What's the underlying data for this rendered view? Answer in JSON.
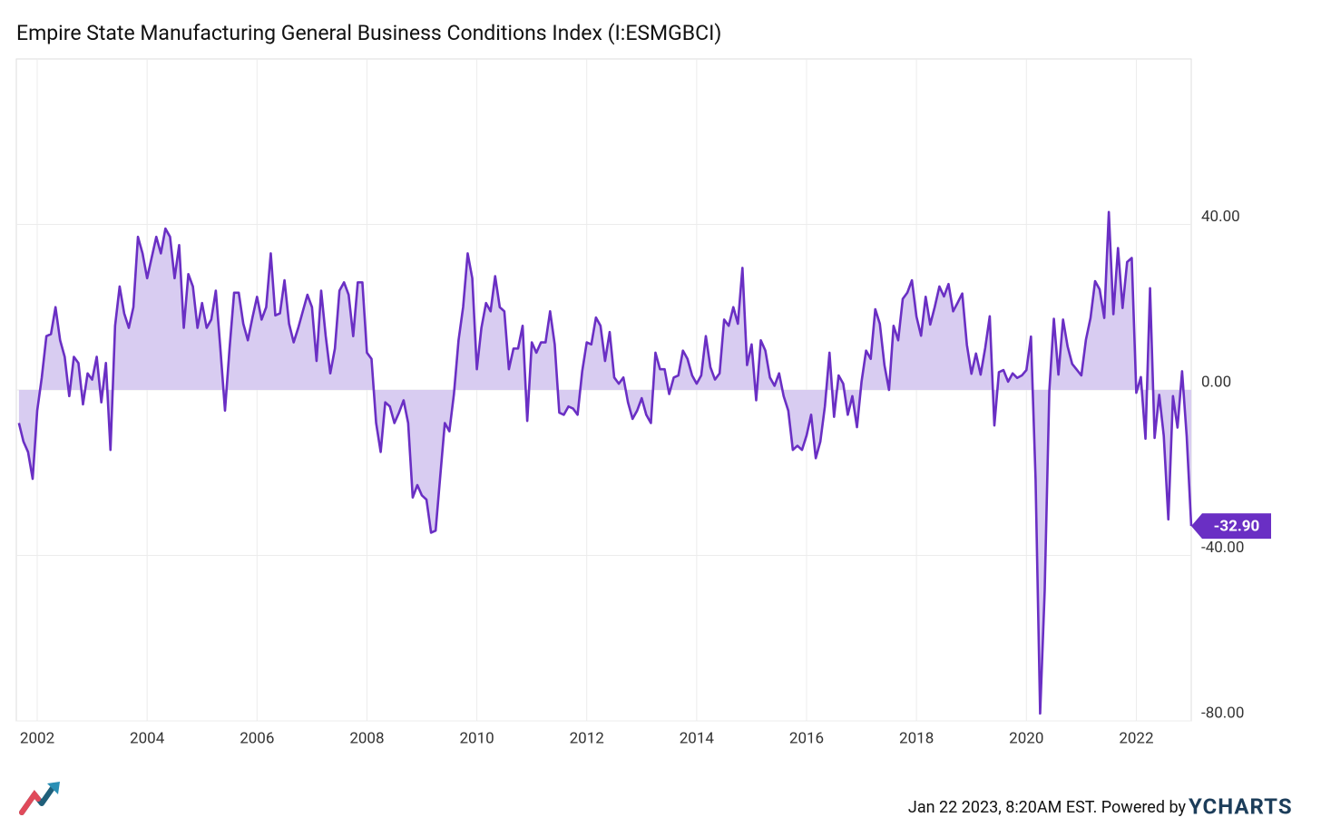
{
  "chart_data": {
    "type": "area",
    "title": "Empire State Manufacturing General Business Conditions Index (I:ESMGBCI)",
    "color": "#6a2fc4",
    "fill_color": "#d8ccf1",
    "x": [
      2001.667,
      2001.75,
      2001.833,
      2001.917,
      2002,
      2002.083,
      2002.167,
      2002.25,
      2002.333,
      2002.417,
      2002.5,
      2002.583,
      2002.667,
      2002.75,
      2002.833,
      2002.917,
      2003,
      2003.083,
      2003.167,
      2003.25,
      2003.333,
      2003.417,
      2003.5,
      2003.583,
      2003.667,
      2003.75,
      2003.833,
      2003.917,
      2004,
      2004.083,
      2004.167,
      2004.25,
      2004.333,
      2004.417,
      2004.5,
      2004.583,
      2004.667,
      2004.75,
      2004.833,
      2004.917,
      2005,
      2005.083,
      2005.167,
      2005.25,
      2005.333,
      2005.417,
      2005.5,
      2005.583,
      2005.667,
      2005.75,
      2005.833,
      2005.917,
      2006,
      2006.083,
      2006.167,
      2006.25,
      2006.333,
      2006.417,
      2006.5,
      2006.583,
      2006.667,
      2006.75,
      2006.833,
      2006.917,
      2007,
      2007.083,
      2007.167,
      2007.25,
      2007.333,
      2007.417,
      2007.5,
      2007.583,
      2007.667,
      2007.75,
      2007.833,
      2007.917,
      2008,
      2008.083,
      2008.167,
      2008.25,
      2008.333,
      2008.417,
      2008.5,
      2008.583,
      2008.667,
      2008.75,
      2008.833,
      2008.917,
      2009,
      2009.083,
      2009.167,
      2009.25,
      2009.333,
      2009.417,
      2009.5,
      2009.583,
      2009.667,
      2009.75,
      2009.833,
      2009.917,
      2010,
      2010.083,
      2010.167,
      2010.25,
      2010.333,
      2010.417,
      2010.5,
      2010.583,
      2010.667,
      2010.75,
      2010.833,
      2010.917,
      2011,
      2011.083,
      2011.167,
      2011.25,
      2011.333,
      2011.417,
      2011.5,
      2011.583,
      2011.667,
      2011.75,
      2011.833,
      2011.917,
      2012,
      2012.083,
      2012.167,
      2012.25,
      2012.333,
      2012.417,
      2012.5,
      2012.583,
      2012.667,
      2012.75,
      2012.833,
      2012.917,
      2013,
      2013.083,
      2013.167,
      2013.25,
      2013.333,
      2013.417,
      2013.5,
      2013.583,
      2013.667,
      2013.75,
      2013.833,
      2013.917,
      2014,
      2014.083,
      2014.167,
      2014.25,
      2014.333,
      2014.417,
      2014.5,
      2014.583,
      2014.667,
      2014.75,
      2014.833,
      2014.917,
      2015,
      2015.083,
      2015.167,
      2015.25,
      2015.333,
      2015.417,
      2015.5,
      2015.583,
      2015.667,
      2015.75,
      2015.833,
      2015.917,
      2016,
      2016.083,
      2016.167,
      2016.25,
      2016.333,
      2016.417,
      2016.5,
      2016.583,
      2016.667,
      2016.75,
      2016.833,
      2016.917,
      2017,
      2017.083,
      2017.167,
      2017.25,
      2017.333,
      2017.417,
      2017.5,
      2017.583,
      2017.667,
      2017.75,
      2017.833,
      2017.917,
      2018,
      2018.083,
      2018.167,
      2018.25,
      2018.333,
      2018.417,
      2018.5,
      2018.583,
      2018.667,
      2018.75,
      2018.833,
      2018.917,
      2019,
      2019.083,
      2019.167,
      2019.25,
      2019.333,
      2019.417,
      2019.5,
      2019.583,
      2019.667,
      2019.75,
      2019.833,
      2019.917,
      2020,
      2020.083,
      2020.167,
      2020.25,
      2020.333,
      2020.417,
      2020.5,
      2020.583,
      2020.667,
      2020.75,
      2020.833,
      2020.917,
      2021,
      2021.083,
      2021.167,
      2021.25,
      2021.333,
      2021.417,
      2021.5,
      2021.583,
      2021.667,
      2021.75,
      2021.833,
      2021.917,
      2022,
      2022.083,
      2022.167,
      2022.25,
      2022.333,
      2022.417,
      2022.5,
      2022.583,
      2022.667,
      2022.75,
      2022.833,
      2022.917,
      2023
    ],
    "values": [
      -8,
      -12.5,
      -15,
      -21.5,
      -5,
      3,
      13,
      13.5,
      20,
      12,
      8,
      -1.5,
      8,
      6.5,
      -3.5,
      4,
      2.5,
      8,
      -3,
      6.5,
      -14.5,
      15.5,
      25,
      18.5,
      15,
      20,
      37,
      33,
      27,
      32,
      37,
      33,
      39,
      37,
      27,
      35,
      15,
      28,
      25,
      15,
      21,
      15,
      17,
      24,
      10,
      -5,
      10,
      23.5,
      23.5,
      16,
      12,
      17.5,
      22.5,
      17,
      20,
      33,
      18,
      18.5,
      26.5,
      16,
      11.5,
      15,
      19,
      23,
      20,
      7,
      24,
      13,
      4,
      10,
      24,
      26,
      23,
      13,
      26,
      26,
      9,
      7.5,
      -8,
      -15,
      -3,
      -4,
      -8,
      -5.5,
      -2.5,
      -8,
      -26,
      -23,
      -25.5,
      -26.5,
      -34.5,
      -34,
      -21,
      -8,
      -10,
      -1,
      12,
      20,
      33,
      27,
      5,
      15,
      21,
      19,
      27.5,
      20,
      19,
      5,
      10,
      10,
      15.5,
      -7.5,
      11.5,
      9,
      11.5,
      11.5,
      19,
      11,
      -5.5,
      -6,
      -4,
      -4.5,
      -6,
      4.5,
      11.5,
      11,
      17.5,
      15.5,
      7,
      14,
      3,
      1.5,
      3,
      -3,
      -7,
      -5,
      -2,
      -6,
      -8,
      9,
      5,
      5,
      -1,
      3,
      3.5,
      9.5,
      7.5,
      3.5,
      1.5,
      3.5,
      13,
      5.5,
      2.5,
      4,
      17,
      15.5,
      20,
      16,
      29.5,
      6,
      11,
      -2.5,
      12,
      9.5,
      3,
      1,
      4,
      -1.5,
      -5,
      -14.5,
      -13.5,
      -14.5,
      -11,
      -6,
      -16.5,
      -12.5,
      -4,
      9,
      -6.5,
      3.5,
      1.5,
      -6,
      -1.5,
      -9,
      2,
      9.5,
      7.5,
      19.5,
      16,
      6,
      0,
      15.5,
      12,
      22,
      23.5,
      26.5,
      17.7,
      13.1,
      22.5,
      15.8,
      20.1,
      25,
      22.6,
      25.6,
      19,
      21.1,
      23.3,
      10.9,
      3.9,
      8.8,
      3.7,
      10.1,
      17.8,
      -8.6,
      4.3,
      4.8,
      2,
      4,
      2.9,
      3.5,
      4.8,
      12.9,
      -21.5,
      -78.2,
      -48.5,
      -0.2,
      17.2,
      3.7,
      17,
      10.5,
      6.3,
      4.9,
      3.5,
      12.1,
      17.4,
      26.3,
      24.3,
      17.4,
      43,
      18.3,
      34.3,
      19.8,
      30.9,
      31.9,
      -0.7,
      3.1,
      -11.8,
      24.6,
      -11.6,
      -1.2,
      -11.1,
      -31.3,
      -1.5,
      -9.1,
      4.5,
      -11.2,
      -32.9
    ],
    "end_label": "-32.90",
    "xlim": [
      2001.62,
      2023
    ],
    "xticks": [
      2002,
      2004,
      2006,
      2008,
      2010,
      2012,
      2014,
      2016,
      2018,
      2020,
      2022
    ],
    "ylim": [
      -80,
      80
    ],
    "yticks": [
      {
        "value": -80,
        "label": "-80.00"
      },
      {
        "value": -40,
        "label": "-40.00"
      },
      {
        "value": 0,
        "label": "0.00"
      },
      {
        "value": 40,
        "label": "40.00"
      }
    ],
    "grid": true,
    "timestamp": "Jan 22 2023, 8:20AM EST. Powered by",
    "brand": "YCHARTS"
  }
}
